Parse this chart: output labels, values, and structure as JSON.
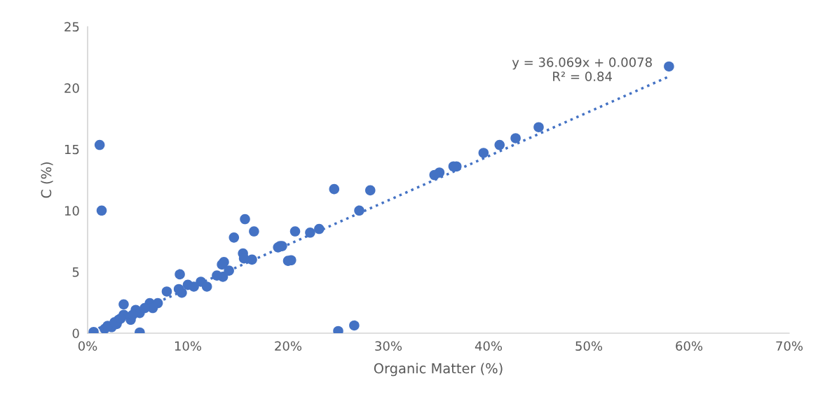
{
  "chart_data": {
    "type": "scatter",
    "xlabel": "Organic Matter (%)",
    "ylabel": "C (%)",
    "xlim": [
      0,
      0.7
    ],
    "xticks": [
      {
        "value": 0,
        "label": "0%"
      },
      {
        "value": 0.1,
        "label": "10%"
      },
      {
        "value": 0.2,
        "label": "20%"
      },
      {
        "value": 0.3,
        "label": "30%"
      },
      {
        "value": 0.4,
        "label": "40%"
      },
      {
        "value": 0.5,
        "label": "50%"
      },
      {
        "value": 0.6,
        "label": "60%"
      },
      {
        "value": 0.7,
        "label": "70%"
      }
    ],
    "ylim": [
      0,
      25
    ],
    "yticks": [
      0,
      5,
      10,
      15,
      20,
      25
    ],
    "grid": false,
    "annotations": [
      "y = 36.069x + 0.0078\nR² = 0.84"
    ],
    "series": [
      {
        "marker": "circle",
        "color": "#4472c4",
        "x": [
          0.58,
          0.45,
          0.427,
          0.411,
          0.395,
          0.368,
          0.365,
          0.351,
          0.346,
          0.271,
          0.282,
          0.246,
          0.266,
          0.25,
          0.231,
          0.222,
          0.207,
          0.203,
          0.194,
          0.192,
          0.19,
          0.2,
          0.157,
          0.166,
          0.146,
          0.155,
          0.164,
          0.156,
          0.136,
          0.134,
          0.141,
          0.135,
          0.129,
          0.113,
          0.119,
          0.012,
          0.014,
          0.092,
          0.079,
          0.091,
          0.094,
          0.1,
          0.106,
          0.036,
          0.052,
          0.062,
          0.07,
          0.065,
          0.048,
          0.043,
          0.036,
          0.031,
          0.029,
          0.024,
          0.017,
          0.052,
          0.057,
          0.006,
          0.02,
          0.027,
          0.033,
          0.045
        ],
        "values": [
          21.75,
          16.8,
          15.9,
          15.35,
          14.7,
          13.6,
          13.6,
          13.1,
          12.9,
          10.0,
          11.65,
          11.75,
          0.63,
          0.17,
          8.5,
          8.2,
          8.3,
          5.95,
          7.1,
          7.1,
          7.0,
          5.9,
          9.3,
          8.3,
          7.8,
          6.5,
          6.0,
          6.1,
          5.8,
          5.6,
          5.1,
          4.6,
          4.7,
          4.2,
          3.8,
          15.35,
          10.0,
          4.8,
          3.4,
          3.6,
          3.3,
          3.95,
          3.8,
          2.35,
          0.06,
          2.45,
          2.45,
          2.05,
          1.9,
          1.1,
          1.5,
          1.1,
          0.75,
          0.5,
          0.35,
          1.65,
          2.05,
          0.1,
          0.6,
          0.9,
          1.2,
          1.5
        ]
      },
      {
        "type": "line",
        "line_style": "dotted",
        "color": "#4472c4",
        "x": [
          0.005,
          0.58
        ],
        "values": [
          0.19,
          20.93
        ]
      }
    ]
  }
}
